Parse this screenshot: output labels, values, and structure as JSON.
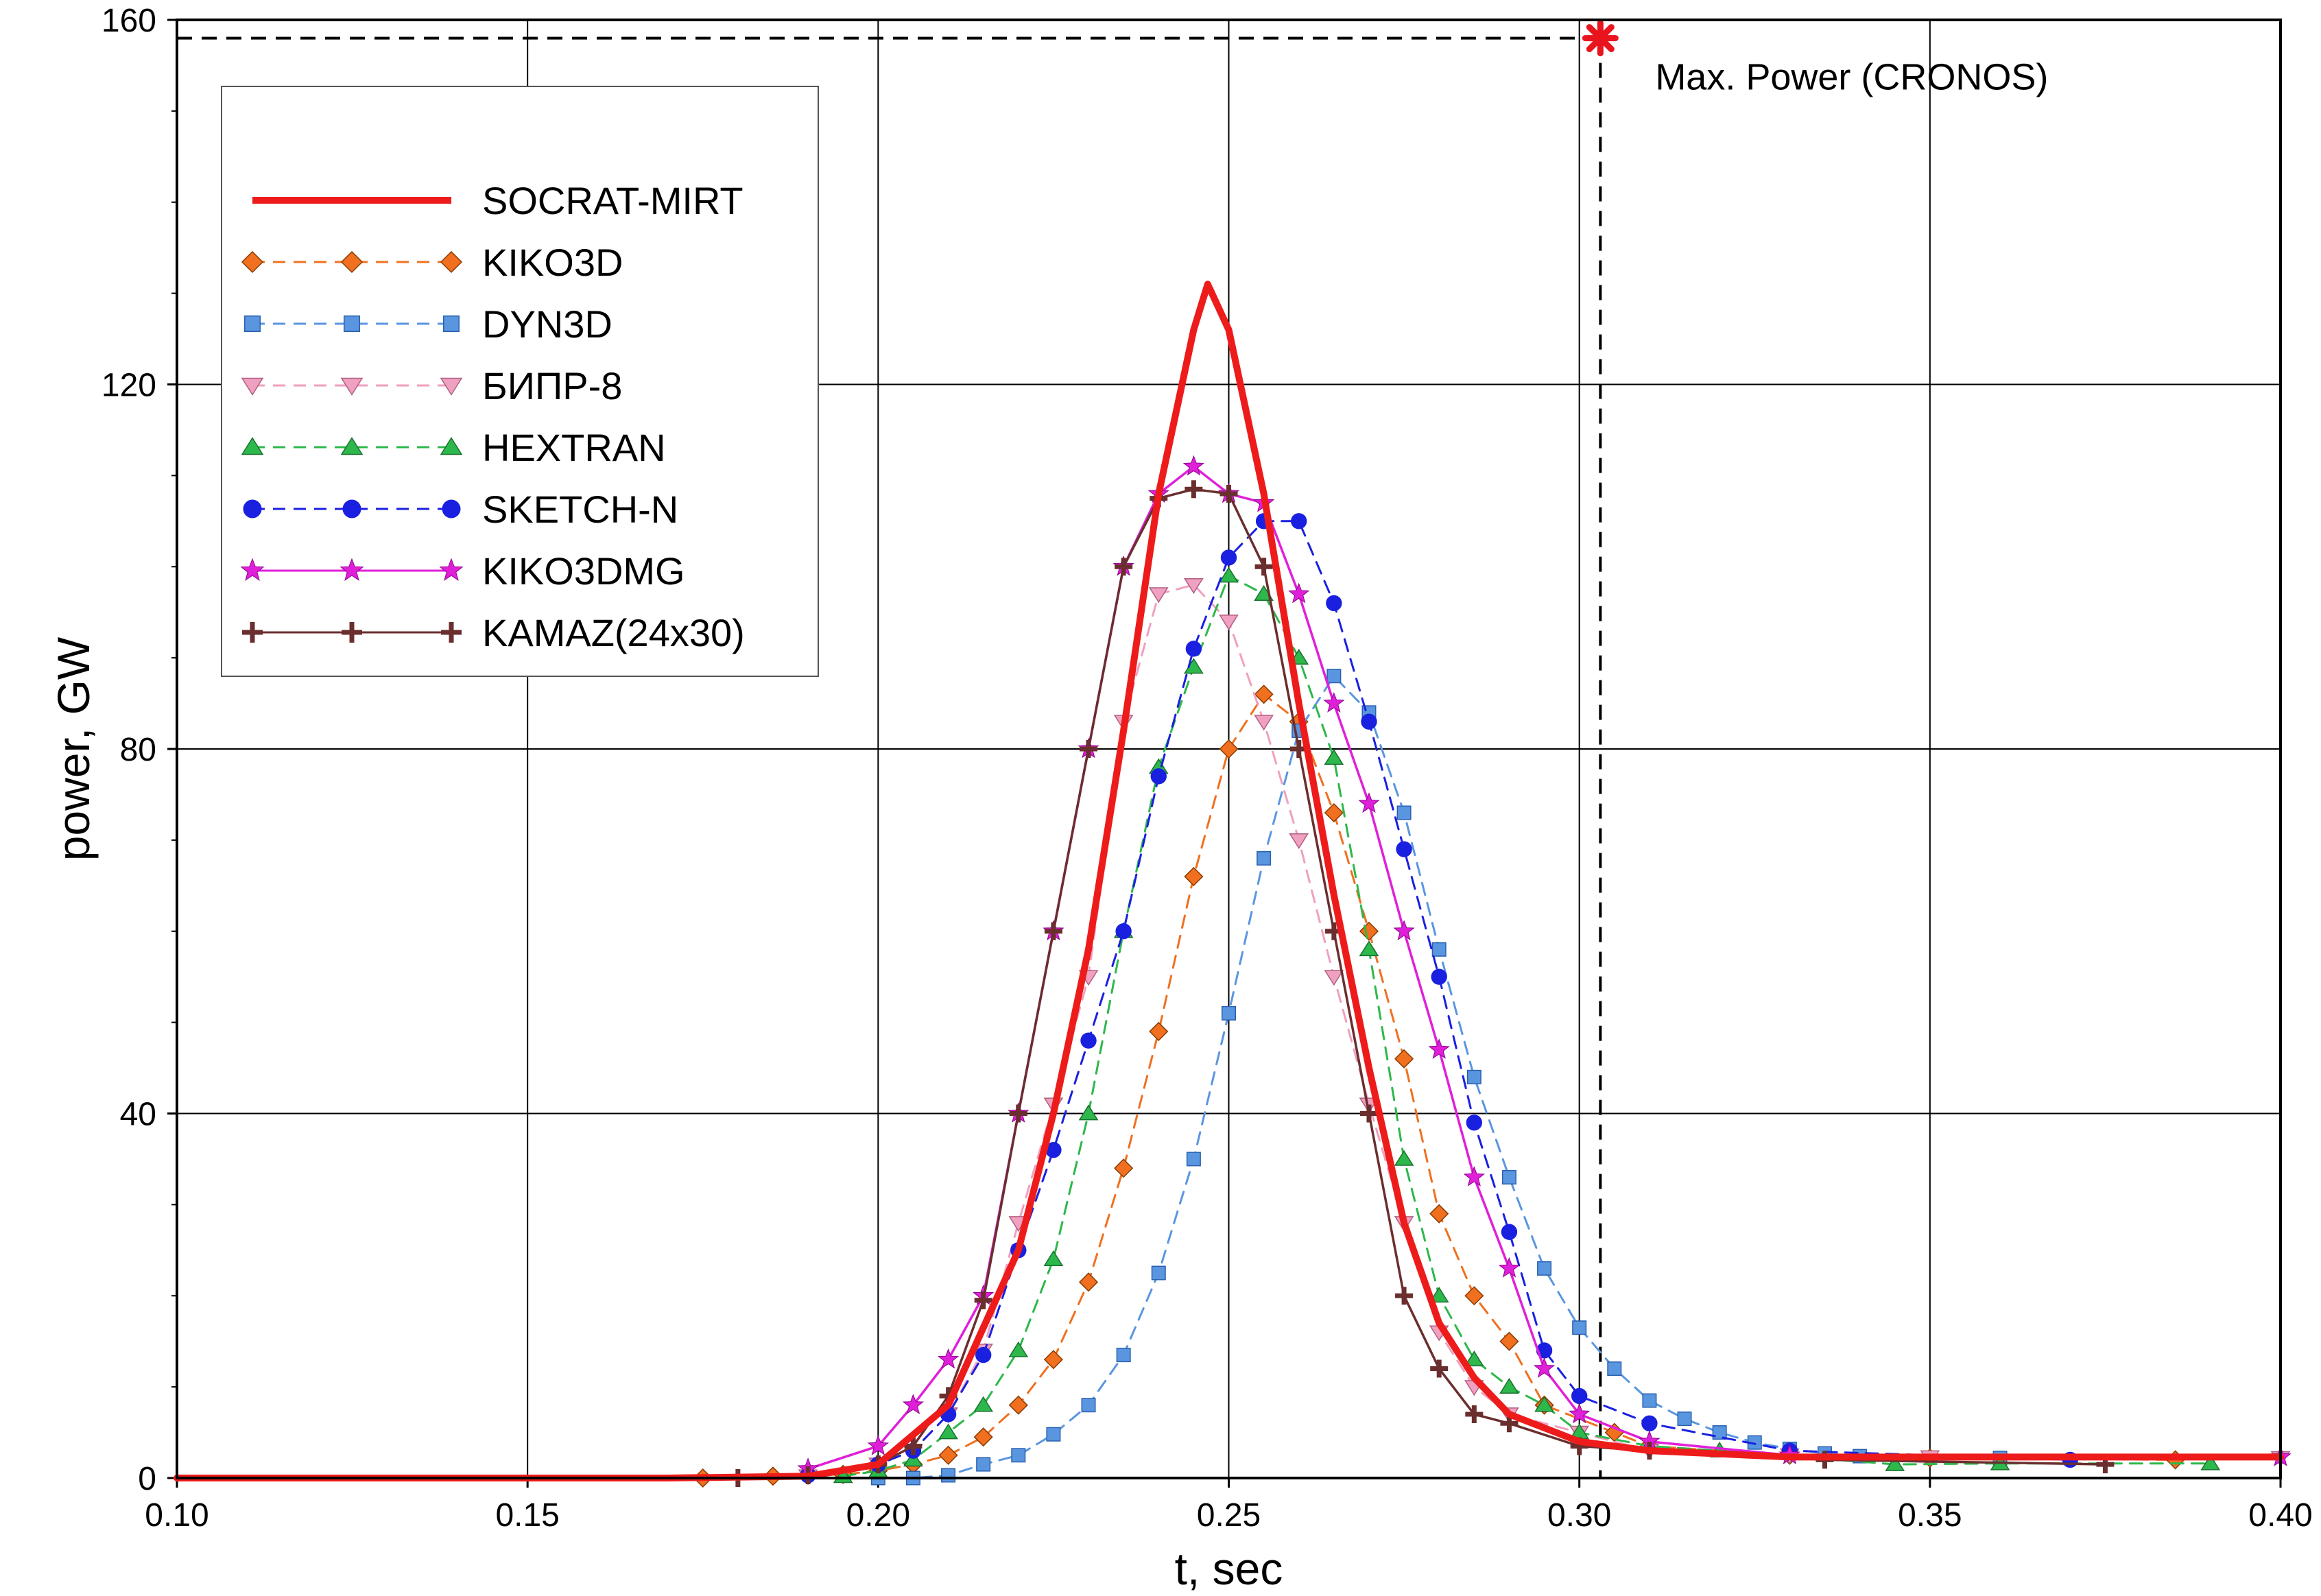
{
  "chart_data": {
    "type": "line",
    "xlabel": "t, sec",
    "ylabel": "power, GW",
    "xlim": [
      0.1,
      0.4
    ],
    "ylim": [
      0,
      160
    ],
    "xticks": [
      "0.10",
      "0.15",
      "0.20",
      "0.25",
      "0.30",
      "0.35",
      "0.40"
    ],
    "yticks": [
      "0",
      "40",
      "80",
      "120",
      "160"
    ],
    "grid": true,
    "legend_position": "top-left",
    "annotation": {
      "text": "Max. Power (CRONOS)",
      "x": 0.303,
      "y": 158,
      "color": "#e8141e"
    },
    "series": [
      {
        "name": "SOCRAT-MIRT",
        "color": "#ee1b1b",
        "line": "solid",
        "marker": "none",
        "x": [
          0.1,
          0.17,
          0.19,
          0.2,
          0.21,
          0.22,
          0.225,
          0.23,
          0.235,
          0.24,
          0.245,
          0.247,
          0.25,
          0.255,
          0.26,
          0.265,
          0.27,
          0.275,
          0.28,
          0.285,
          0.29,
          0.3,
          0.31,
          0.33,
          0.4
        ],
        "y": [
          0,
          0,
          0.2,
          1.5,
          8,
          25,
          40,
          58,
          82,
          108,
          126,
          131,
          126,
          108,
          85,
          64,
          45,
          28,
          17,
          11,
          7,
          4,
          3,
          2.3,
          2.3
        ]
      },
      {
        "name": "KIKO3D",
        "color": "#f07020",
        "line": "dashed",
        "marker": "diamond",
        "x": [
          0.175,
          0.185,
          0.195,
          0.2,
          0.205,
          0.21,
          0.215,
          0.22,
          0.225,
          0.23,
          0.235,
          0.24,
          0.245,
          0.25,
          0.255,
          0.26,
          0.265,
          0.27,
          0.275,
          0.28,
          0.285,
          0.29,
          0.295,
          0.305,
          0.31,
          0.33,
          0.35,
          0.385
        ],
        "y": [
          0,
          0.2,
          0.4,
          0.8,
          1.5,
          2.5,
          4.5,
          8,
          13,
          21.5,
          34,
          49,
          66,
          80,
          86,
          83,
          73,
          60,
          46,
          29,
          20,
          15,
          8,
          5,
          3.5,
          2.5,
          2.2,
          2.0
        ]
      },
      {
        "name": "DYN3D",
        "color": "#5a96e0",
        "line": "dashed",
        "marker": "square",
        "x": [
          0.2,
          0.205,
          0.21,
          0.215,
          0.22,
          0.225,
          0.23,
          0.235,
          0.24,
          0.245,
          0.25,
          0.255,
          0.26,
          0.265,
          0.27,
          0.275,
          0.28,
          0.285,
          0.29,
          0.295,
          0.3,
          0.305,
          0.31,
          0.315,
          0.32,
          0.325,
          0.33,
          0.335,
          0.34,
          0.36
        ],
        "y": [
          0,
          0,
          0.3,
          1.5,
          2.5,
          4.8,
          8,
          13.5,
          22.5,
          35,
          51,
          68,
          82,
          88,
          84,
          73,
          58,
          44,
          33,
          23,
          16.5,
          12,
          8.5,
          6.5,
          5,
          3.9,
          3.2,
          2.7,
          2.4,
          2.2
        ]
      },
      {
        "name": "БИПР-8",
        "color": "#f0a0c0",
        "line": "dashed",
        "marker": "triangle-down",
        "x": [
          0.19,
          0.2,
          0.205,
          0.21,
          0.215,
          0.22,
          0.225,
          0.23,
          0.235,
          0.24,
          0.245,
          0.25,
          0.255,
          0.26,
          0.265,
          0.27,
          0.275,
          0.28,
          0.285,
          0.29,
          0.3,
          0.31,
          0.33,
          0.35,
          0.4
        ],
        "y": [
          0.2,
          1.5,
          3,
          7,
          14,
          28,
          41,
          55,
          83,
          97,
          98,
          94,
          83,
          70,
          55,
          41,
          28,
          16,
          10,
          7,
          5,
          3,
          2.5,
          2.3,
          2.2
        ]
      },
      {
        "name": "HEXTRAN",
        "color": "#2db84b",
        "line": "dashed",
        "marker": "triangle-up",
        "x": [
          0.195,
          0.2,
          0.205,
          0.21,
          0.215,
          0.22,
          0.225,
          0.23,
          0.235,
          0.24,
          0.245,
          0.25,
          0.255,
          0.26,
          0.265,
          0.27,
          0.275,
          0.28,
          0.285,
          0.29,
          0.295,
          0.3,
          0.31,
          0.32,
          0.345,
          0.36,
          0.39
        ],
        "y": [
          0.2,
          0.8,
          2,
          5,
          8,
          14,
          24,
          40,
          60,
          78,
          89,
          99,
          97,
          90,
          79,
          58,
          35,
          20,
          13,
          10,
          8,
          5,
          3.5,
          3,
          1.5,
          1.6,
          1.6
        ]
      },
      {
        "name": "SKETCH-N",
        "color": "#1a20e0",
        "line": "dashed",
        "marker": "circle",
        "x": [
          0.19,
          0.2,
          0.205,
          0.21,
          0.215,
          0.22,
          0.225,
          0.23,
          0.235,
          0.24,
          0.245,
          0.25,
          0.255,
          0.26,
          0.265,
          0.27,
          0.275,
          0.28,
          0.285,
          0.29,
          0.295,
          0.3,
          0.31,
          0.33,
          0.37
        ],
        "y": [
          0.3,
          1.5,
          3,
          7,
          13.5,
          25,
          36,
          48,
          60,
          77,
          91,
          101,
          105,
          105,
          96,
          83,
          69,
          55,
          39,
          27,
          14,
          9,
          6,
          3,
          2
        ]
      },
      {
        "name": "KIKO3DMG",
        "color": "#e020d8",
        "line": "solid",
        "marker": "star",
        "x": [
          0.19,
          0.2,
          0.205,
          0.21,
          0.215,
          0.22,
          0.225,
          0.23,
          0.235,
          0.24,
          0.245,
          0.25,
          0.255,
          0.26,
          0.265,
          0.27,
          0.275,
          0.28,
          0.285,
          0.29,
          0.295,
          0.3,
          0.31,
          0.33,
          0.4
        ],
        "y": [
          1,
          3.5,
          8,
          13,
          20,
          40,
          60,
          80,
          100,
          108,
          111,
          108,
          107,
          97,
          85,
          74,
          60,
          47,
          33,
          23,
          12,
          7,
          4,
          2.5,
          2.3
        ]
      },
      {
        "name": "KAMAZ(24x30)",
        "color": "#6b2e2e",
        "line": "solid",
        "marker": "plus",
        "x": [
          0.18,
          0.19,
          0.2,
          0.205,
          0.21,
          0.215,
          0.22,
          0.225,
          0.23,
          0.235,
          0.24,
          0.245,
          0.25,
          0.255,
          0.26,
          0.265,
          0.27,
          0.275,
          0.28,
          0.285,
          0.29,
          0.3,
          0.31,
          0.335,
          0.375
        ],
        "y": [
          0,
          0.3,
          1.5,
          3.5,
          9,
          19.5,
          40,
          60,
          80,
          100,
          107.5,
          108.5,
          108,
          100,
          80,
          60,
          40,
          20,
          12,
          7,
          6,
          3.5,
          3,
          2,
          1.5
        ]
      }
    ]
  }
}
